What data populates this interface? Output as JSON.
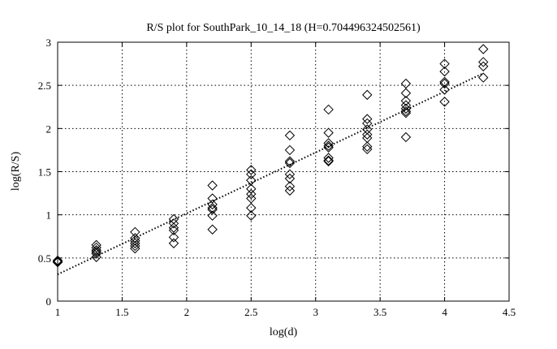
{
  "chart_data": {
    "type": "scatter",
    "title": "R/S plot for SouthPark_10_14_18 (H=0.704496324502561)",
    "xlabel": "log(d)",
    "ylabel": "log(R/S)",
    "xlim": [
      1,
      4.5
    ],
    "ylim": [
      0,
      3
    ],
    "xticks": [
      "1",
      "1.5",
      "2",
      "2.5",
      "3",
      "3.5",
      "4",
      "4.5"
    ],
    "yticks": [
      "0",
      "0.5",
      "1",
      "1.5",
      "2",
      "2.5",
      "3"
    ],
    "grid": true,
    "marker": "diamond",
    "fit_line": {
      "style": "dotted",
      "x": [
        1,
        4.3
      ],
      "y": [
        0.31,
        2.64
      ]
    },
    "points": [
      {
        "x": 1.0,
        "y": 0.46
      },
      {
        "x": 1.0,
        "y": 0.45
      },
      {
        "x": 1.0,
        "y": 0.47
      },
      {
        "x": 1.3,
        "y": 0.65
      },
      {
        "x": 1.3,
        "y": 0.62
      },
      {
        "x": 1.3,
        "y": 0.59
      },
      {
        "x": 1.3,
        "y": 0.57
      },
      {
        "x": 1.3,
        "y": 0.55
      },
      {
        "x": 1.3,
        "y": 0.51
      },
      {
        "x": 1.6,
        "y": 0.8
      },
      {
        "x": 1.6,
        "y": 0.73
      },
      {
        "x": 1.6,
        "y": 0.7
      },
      {
        "x": 1.6,
        "y": 0.67
      },
      {
        "x": 1.6,
        "y": 0.64
      },
      {
        "x": 1.6,
        "y": 0.61
      },
      {
        "x": 1.9,
        "y": 0.95
      },
      {
        "x": 1.9,
        "y": 0.9
      },
      {
        "x": 1.9,
        "y": 0.85
      },
      {
        "x": 1.9,
        "y": 0.82
      },
      {
        "x": 1.9,
        "y": 0.74
      },
      {
        "x": 1.9,
        "y": 0.67
      },
      {
        "x": 2.2,
        "y": 1.34
      },
      {
        "x": 2.2,
        "y": 1.19
      },
      {
        "x": 2.2,
        "y": 1.12
      },
      {
        "x": 2.2,
        "y": 1.08
      },
      {
        "x": 2.2,
        "y": 1.06
      },
      {
        "x": 2.2,
        "y": 0.99
      },
      {
        "x": 2.2,
        "y": 0.83
      },
      {
        "x": 2.5,
        "y": 1.52
      },
      {
        "x": 2.5,
        "y": 1.47
      },
      {
        "x": 2.5,
        "y": 1.4
      },
      {
        "x": 2.5,
        "y": 1.3
      },
      {
        "x": 2.5,
        "y": 1.24
      },
      {
        "x": 2.5,
        "y": 1.19
      },
      {
        "x": 2.5,
        "y": 1.08
      },
      {
        "x": 2.5,
        "y": 0.99
      },
      {
        "x": 2.8,
        "y": 1.92
      },
      {
        "x": 2.8,
        "y": 1.75
      },
      {
        "x": 2.8,
        "y": 1.62
      },
      {
        "x": 2.8,
        "y": 1.6
      },
      {
        "x": 2.8,
        "y": 1.47
      },
      {
        "x": 2.8,
        "y": 1.42
      },
      {
        "x": 2.8,
        "y": 1.33
      },
      {
        "x": 2.8,
        "y": 1.28
      },
      {
        "x": 3.1,
        "y": 2.22
      },
      {
        "x": 3.1,
        "y": 1.95
      },
      {
        "x": 3.1,
        "y": 1.83
      },
      {
        "x": 3.1,
        "y": 1.8
      },
      {
        "x": 3.1,
        "y": 1.78
      },
      {
        "x": 3.1,
        "y": 1.66
      },
      {
        "x": 3.1,
        "y": 1.63
      },
      {
        "x": 3.1,
        "y": 1.62
      },
      {
        "x": 3.4,
        "y": 2.39
      },
      {
        "x": 3.4,
        "y": 2.11
      },
      {
        "x": 3.4,
        "y": 2.06
      },
      {
        "x": 3.4,
        "y": 1.99
      },
      {
        "x": 3.4,
        "y": 1.93
      },
      {
        "x": 3.4,
        "y": 1.89
      },
      {
        "x": 3.4,
        "y": 1.79
      },
      {
        "x": 3.4,
        "y": 1.76
      },
      {
        "x": 3.7,
        "y": 2.52
      },
      {
        "x": 3.7,
        "y": 2.41
      },
      {
        "x": 3.7,
        "y": 2.32
      },
      {
        "x": 3.7,
        "y": 2.27
      },
      {
        "x": 3.7,
        "y": 2.23
      },
      {
        "x": 3.7,
        "y": 2.2
      },
      {
        "x": 3.7,
        "y": 2.18
      },
      {
        "x": 3.7,
        "y": 1.9
      },
      {
        "x": 4.0,
        "y": 2.75
      },
      {
        "x": 4.0,
        "y": 2.66
      },
      {
        "x": 4.0,
        "y": 2.54
      },
      {
        "x": 4.0,
        "y": 2.52
      },
      {
        "x": 4.0,
        "y": 2.45
      },
      {
        "x": 4.0,
        "y": 2.31
      },
      {
        "x": 4.3,
        "y": 2.92
      },
      {
        "x": 4.3,
        "y": 2.77
      },
      {
        "x": 4.3,
        "y": 2.72
      },
      {
        "x": 4.3,
        "y": 2.59
      }
    ]
  }
}
